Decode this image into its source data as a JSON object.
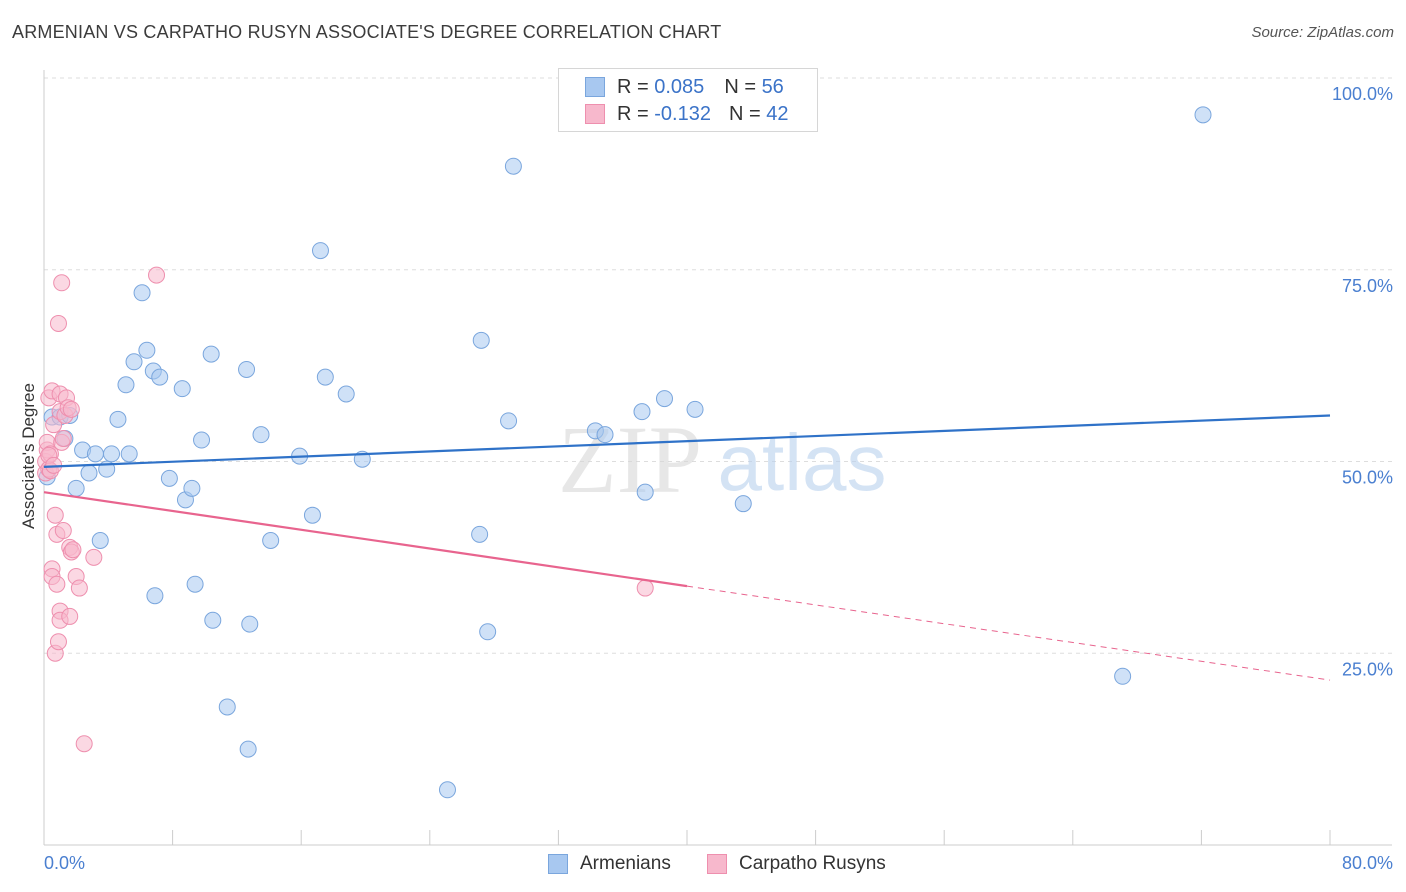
{
  "title": "ARMENIAN VS CARPATHO RUSYN ASSOCIATE'S DEGREE CORRELATION CHART",
  "source": "Source: ZipAtlas.com",
  "watermark": {
    "zip": "ZIP",
    "atlas": "atlas"
  },
  "legend": {
    "rows": [
      {
        "r_label": "R =",
        "r_value": "0.085",
        "n_label": "N =",
        "n_value": "56"
      },
      {
        "r_label": "R =",
        "r_value": "-0.132",
        "n_label": "N =",
        "n_value": "42"
      }
    ]
  },
  "colors": {
    "armenian_fill": "#a8c8f0",
    "armenian_stroke": "#7aa6dd",
    "armenian_line": "#2f72c8",
    "rusyn_fill": "#f7b8cc",
    "rusyn_stroke": "#ee8fae",
    "rusyn_line": "#e8648e",
    "grid": "#dddddd",
    "tick_text": "#4a7fd0"
  },
  "chart_data": {
    "type": "scatter",
    "title": "ARMENIAN VS CARPATHO RUSYN ASSOCIATE'S DEGREE CORRELATION CHART",
    "xlabel": "",
    "ylabel": "Associate's Degree",
    "xlim": [
      0,
      80
    ],
    "ylim": [
      0,
      102
    ],
    "x_tick_labels": [
      "0.0%",
      "80.0%"
    ],
    "y_ticks": [
      25,
      50,
      75,
      100
    ],
    "y_tick_labels": [
      "25.0%",
      "50.0%",
      "75.0%",
      "100.0%"
    ],
    "grid": true,
    "legend_position": "bottom",
    "series": [
      {
        "name": "Armenians",
        "R": 0.085,
        "N": 56,
        "trend": {
          "x0": 0,
          "y0": 49.3,
          "x1": 80,
          "y1": 56.0,
          "dashed_from": null
        },
        "points": [
          [
            0.2,
            48.0
          ],
          [
            0.5,
            55.8
          ],
          [
            1.0,
            55.8
          ],
          [
            1.3,
            53.0
          ],
          [
            1.6,
            56.0
          ],
          [
            2.0,
            46.5
          ],
          [
            2.4,
            51.5
          ],
          [
            2.8,
            48.5
          ],
          [
            3.2,
            51.0
          ],
          [
            3.5,
            39.7
          ],
          [
            3.9,
            49.0
          ],
          [
            4.2,
            51.0
          ],
          [
            4.6,
            55.5
          ],
          [
            5.1,
            60.0
          ],
          [
            5.3,
            51.0
          ],
          [
            5.6,
            63.0
          ],
          [
            6.1,
            72.0
          ],
          [
            6.4,
            64.5
          ],
          [
            6.8,
            61.8
          ],
          [
            6.9,
            32.5
          ],
          [
            7.2,
            61.0
          ],
          [
            7.8,
            47.8
          ],
          [
            8.6,
            59.5
          ],
          [
            8.8,
            45.0
          ],
          [
            9.2,
            46.5
          ],
          [
            9.4,
            34.0
          ],
          [
            9.8,
            52.8
          ],
          [
            10.4,
            64.0
          ],
          [
            10.5,
            29.3
          ],
          [
            11.4,
            18.0
          ],
          [
            12.6,
            62.0
          ],
          [
            12.7,
            12.5
          ],
          [
            12.8,
            28.8
          ],
          [
            13.5,
            53.5
          ],
          [
            14.1,
            39.7
          ],
          [
            15.9,
            50.7
          ],
          [
            16.7,
            43.0
          ],
          [
            17.2,
            77.5
          ],
          [
            17.5,
            61.0
          ],
          [
            18.8,
            58.8
          ],
          [
            19.8,
            50.3
          ],
          [
            25.1,
            7.2
          ],
          [
            27.1,
            40.5
          ],
          [
            27.2,
            65.8
          ],
          [
            27.6,
            27.8
          ],
          [
            28.9,
            55.3
          ],
          [
            29.2,
            88.5
          ],
          [
            34.3,
            54.0
          ],
          [
            34.9,
            53.5
          ],
          [
            37.2,
            56.5
          ],
          [
            37.4,
            46.0
          ],
          [
            38.6,
            58.2
          ],
          [
            40.5,
            56.8
          ],
          [
            43.5,
            44.5
          ],
          [
            67.1,
            22.0
          ],
          [
            72.1,
            95.2
          ]
        ]
      },
      {
        "name": "Carpatho Rusyns",
        "R": -0.132,
        "N": 42,
        "trend": {
          "x0": 0,
          "y0": 46.0,
          "x1": 80,
          "y1": 21.5,
          "dashed_from": 40
        },
        "points": [
          [
            0.1,
            48.5
          ],
          [
            0.1,
            50.0
          ],
          [
            0.2,
            51.5
          ],
          [
            0.2,
            52.5
          ],
          [
            0.3,
            49.0
          ],
          [
            0.3,
            58.3
          ],
          [
            0.4,
            48.8
          ],
          [
            0.4,
            51.0
          ],
          [
            0.5,
            59.2
          ],
          [
            0.5,
            36.0
          ],
          [
            0.5,
            35.0
          ],
          [
            0.6,
            54.8
          ],
          [
            0.7,
            43.0
          ],
          [
            0.7,
            25.0
          ],
          [
            0.8,
            34.0
          ],
          [
            0.8,
            40.5
          ],
          [
            0.9,
            68.0
          ],
          [
            0.9,
            26.5
          ],
          [
            1.0,
            30.5
          ],
          [
            1.0,
            29.3
          ],
          [
            1.0,
            58.8
          ],
          [
            1.0,
            56.5
          ],
          [
            1.1,
            52.5
          ],
          [
            1.1,
            73.3
          ],
          [
            1.2,
            41.0
          ],
          [
            1.3,
            56.0
          ],
          [
            1.4,
            58.3
          ],
          [
            1.5,
            57.0
          ],
          [
            1.6,
            38.8
          ],
          [
            1.6,
            29.8
          ],
          [
            1.7,
            38.2
          ],
          [
            1.7,
            56.8
          ],
          [
            1.8,
            38.5
          ],
          [
            2.0,
            35.0
          ],
          [
            2.2,
            33.5
          ],
          [
            2.5,
            13.2
          ],
          [
            3.1,
            37.5
          ],
          [
            7.0,
            74.3
          ],
          [
            37.4,
            33.5
          ],
          [
            0.3,
            50.8
          ],
          [
            0.6,
            49.5
          ],
          [
            1.2,
            53.0
          ]
        ]
      }
    ]
  },
  "bottom_legend": [
    {
      "label": "Armenians"
    },
    {
      "label": "Carpatho Rusyns"
    }
  ]
}
